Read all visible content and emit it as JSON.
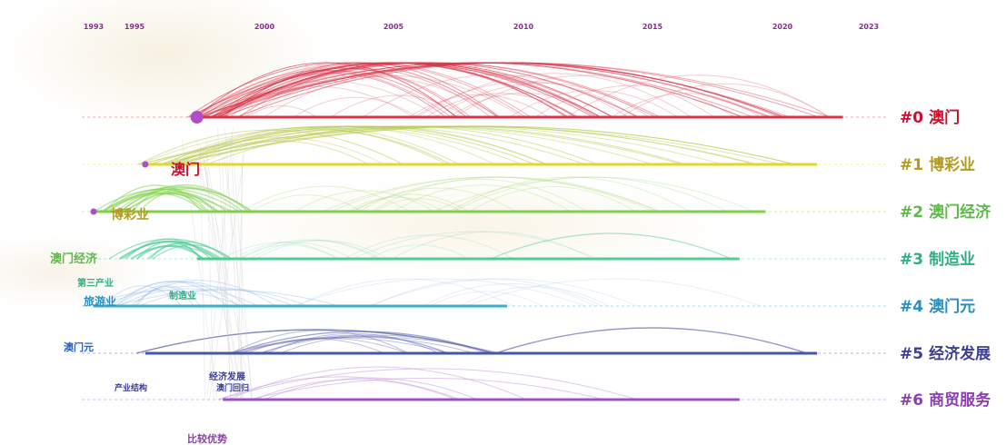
{
  "timeline": {
    "years": [
      "1993",
      "1995",
      "2000",
      "2005",
      "2010",
      "2015",
      "2020",
      "2023"
    ]
  },
  "clusters": [
    {
      "id": "#0",
      "label": "澳门",
      "color": "#d9344a",
      "label_color": "#c8102e",
      "start": "1997",
      "end": "2022"
    },
    {
      "id": "#1",
      "label": "博彩业",
      "color": "#e3d82a",
      "label_color": "#b39b23",
      "start": "1995",
      "end": "2021"
    },
    {
      "id": "#2",
      "label": "澳门经济",
      "color": "#7ed04a",
      "label_color": "#5fb94a",
      "start": "1993",
      "end": "2019"
    },
    {
      "id": "#3",
      "label": "制造业",
      "color": "#4fcc97",
      "label_color": "#2fae84",
      "start": "1997",
      "end": "2018"
    },
    {
      "id": "#4",
      "label": "澳门元",
      "color": "#3bb0c9",
      "label_color": "#2a8fbd",
      "start": "1993",
      "end": "2009"
    },
    {
      "id": "#5",
      "label": "经济发展",
      "color": "#4b55a8",
      "label_color": "#3d3f94",
      "start": "1995",
      "end": "2021"
    },
    {
      "id": "#6",
      "label": "商贸服务",
      "color": "#9b51c4",
      "label_color": "#8b3fb0",
      "start": "1998",
      "end": "2018"
    }
  ],
  "keywords": [
    {
      "text": "澳门",
      "color": "#c8102e"
    },
    {
      "text": "博彩业",
      "color": "#b39b23"
    },
    {
      "text": "澳门经济",
      "color": "#5fb94a"
    },
    {
      "text": "第三产业",
      "color": "#2fae84"
    },
    {
      "text": "旅游业",
      "color": "#2a8fbd"
    },
    {
      "text": "制造业",
      "color": "#2fae84"
    },
    {
      "text": "澳门元",
      "color": "#2a5fbd"
    },
    {
      "text": "产业结构",
      "color": "#3d3f94"
    },
    {
      "text": "经济发展",
      "color": "#3d3f94"
    },
    {
      "text": "澳门回归",
      "color": "#3d3f94"
    },
    {
      "text": "比较优势",
      "color": "#8b3fb0"
    }
  ]
}
